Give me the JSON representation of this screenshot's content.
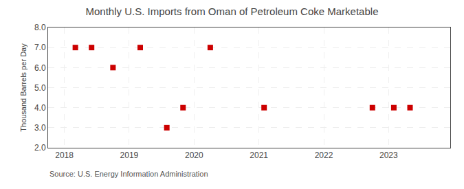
{
  "chart_data": {
    "type": "scatter",
    "title": "Monthly U.S. Imports from Oman of Petroleum Coke Marketable",
    "ylabel": "Thousand Barrels per Day",
    "annotations": [
      "Source: U.S. Energy Information Administration"
    ],
    "x": [
      2018.17,
      2018.42,
      2018.75,
      2019.17,
      2019.58,
      2019.83,
      2020.25,
      2021.08,
      2022.75,
      2023.08,
      2023.33
    ],
    "values": [
      7.0,
      7.0,
      6.0,
      7.0,
      3.0,
      4.0,
      7.0,
      4.0,
      4.0,
      4.0,
      4.0
    ],
    "color": "#cc0000",
    "marker": "square",
    "xlim": [
      2017.75,
      2023.95
    ],
    "ylim": [
      2.0,
      8.0
    ],
    "xticks": [
      2018,
      2019,
      2020,
      2021,
      2022,
      2023
    ],
    "yticks": [
      {
        "value": 2.0,
        "label": "2.0"
      },
      {
        "value": 3.0,
        "label": "3.0"
      },
      {
        "value": 4.0,
        "label": "4.0"
      },
      {
        "value": 5.0,
        "label": "5.0"
      },
      {
        "value": 6.0,
        "label": "6.0"
      },
      {
        "value": 7.0,
        "label": "7.0"
      },
      {
        "value": 8.0,
        "label": "8.0"
      }
    ],
    "grid": true
  }
}
